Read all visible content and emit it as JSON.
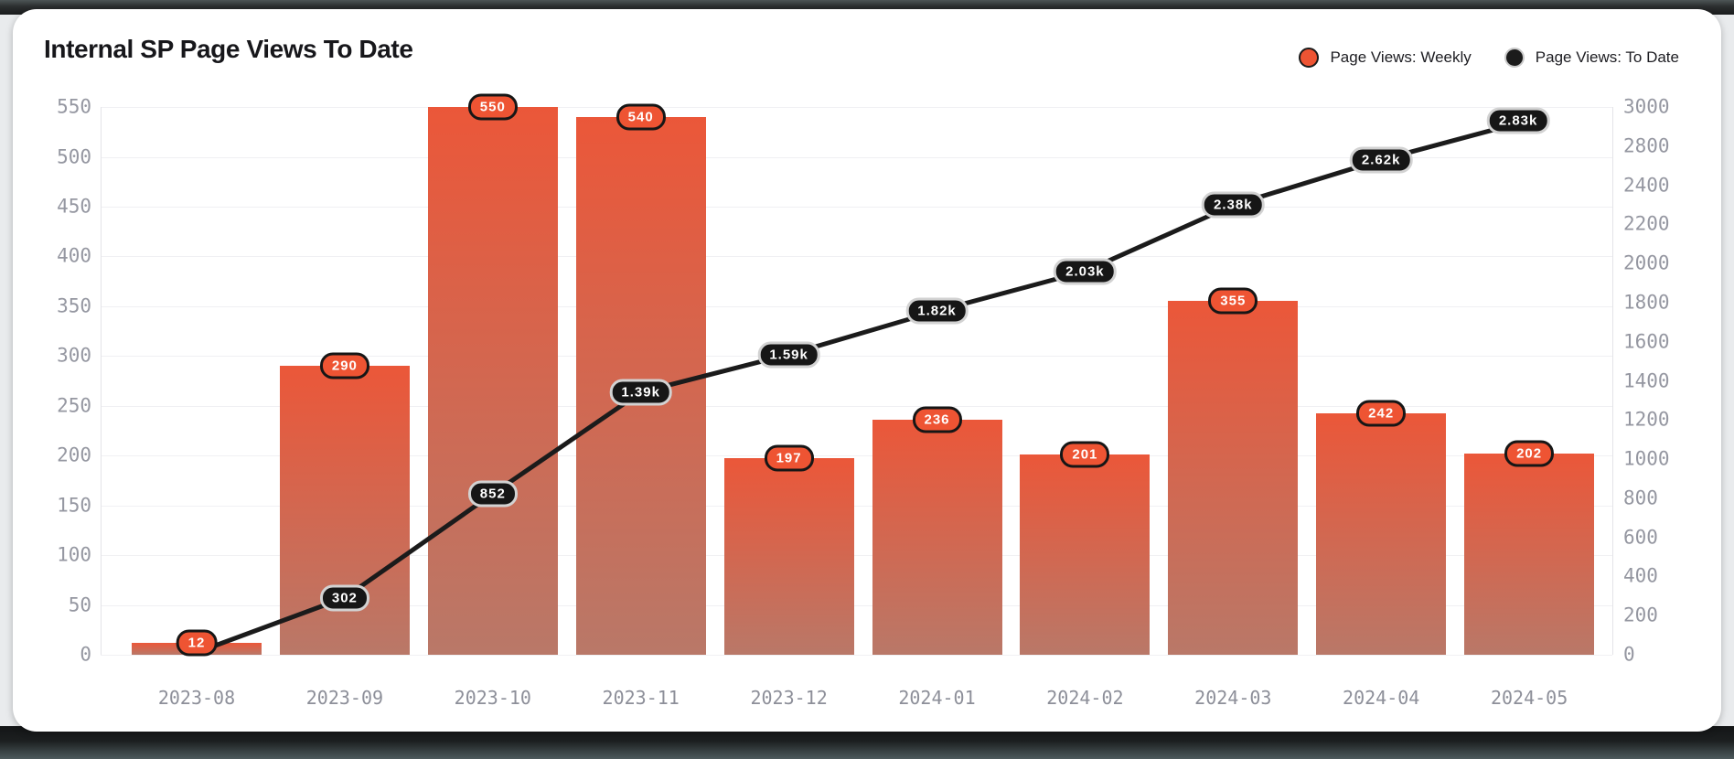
{
  "header": {
    "title": "Internal SP Page Views To Date"
  },
  "colors": {
    "accent_orange": "#ee5433",
    "bar_gradient_top": "#eb5739",
    "bar_gradient_bottom": "#b97868",
    "line_black": "#1b1b1b",
    "badge_line_border": "#d2d2d2",
    "badge_bar_border": "#161616",
    "axis_text": "#9597a1",
    "grid": "#f0f0f3",
    "card_background": "#ffffff",
    "page_background": "#e9ebed"
  },
  "legend": {
    "items": [
      {
        "label": "Page Views: Weekly",
        "dot_color": "#ee5433",
        "dot_border": "#1a1a1a"
      },
      {
        "label": "Page Views: To Date",
        "dot_color": "#1b1b1b",
        "dot_border": "#c9c9c9"
      }
    ]
  },
  "chart_data": {
    "type": "bar+line",
    "title": "Internal SP Page Views To Date",
    "categories": [
      "2023-08",
      "2023-09",
      "2023-10",
      "2023-11",
      "2023-12",
      "2024-01",
      "2024-02",
      "2024-03",
      "2024-04",
      "2024-05"
    ],
    "series": [
      {
        "name": "Page Views: Weekly",
        "type": "bar",
        "axis": "left",
        "values": [
          12,
          290,
          550,
          540,
          197,
          236,
          201,
          355,
          242,
          202
        ],
        "point_labels": [
          "12",
          "290",
          "550",
          "540",
          "197",
          "236",
          "201",
          "355",
          "242",
          "202"
        ]
      },
      {
        "name": "Page Views: To Date",
        "type": "line",
        "axis": "right",
        "values": [
          12,
          302,
          852,
          1390,
          1590,
          1820,
          2030,
          2380,
          2620,
          2830
        ],
        "point_labels": [
          "",
          "302",
          "852",
          "1.39k",
          "1.59k",
          "1.82k",
          "2.03k",
          "2.38k",
          "2.62k",
          "2.83k"
        ]
      }
    ],
    "left_axis": {
      "min": 0,
      "max": 550,
      "ticks": [
        550,
        500,
        450,
        400,
        350,
        300,
        250,
        200,
        150,
        100,
        50,
        0
      ]
    },
    "right_axis": {
      "tick_labels": [
        "3000",
        "2800",
        "2400",
        "2200",
        "2000",
        "1800",
        "1600",
        "1400",
        "1200",
        "1000",
        "800",
        "600",
        "400",
        "200",
        "0"
      ],
      "plot_max": 2900
    },
    "grid": true,
    "legend_position": "top-right",
    "xlabel": "",
    "ylabel": ""
  }
}
